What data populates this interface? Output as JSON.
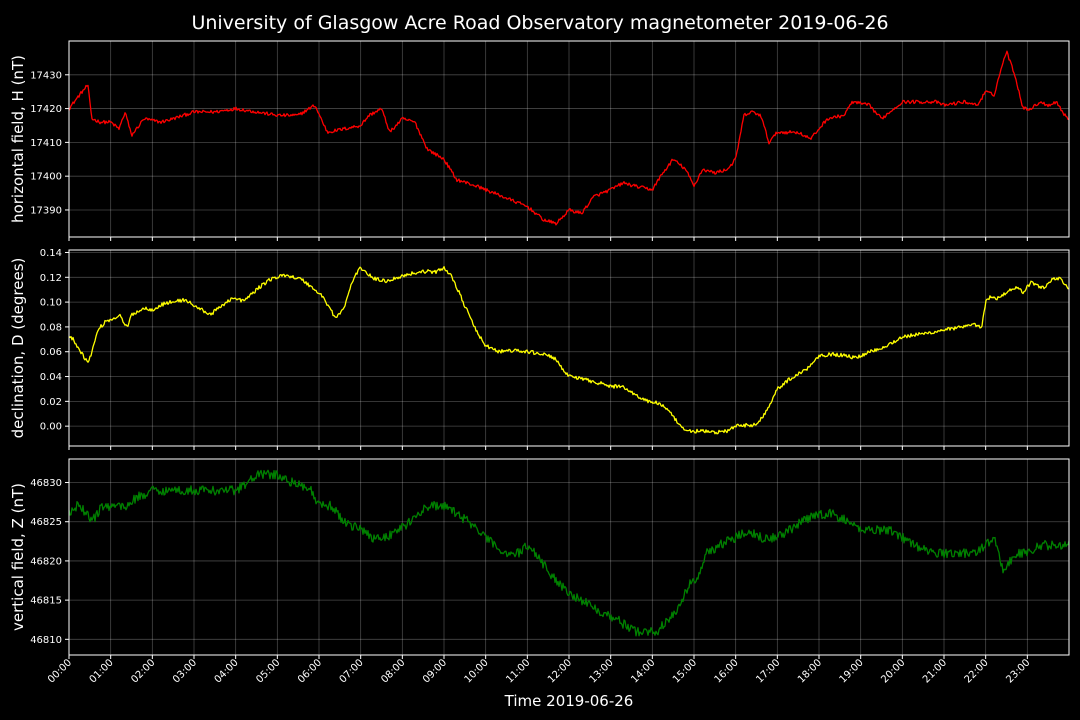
{
  "chart_data": {
    "type": "line",
    "title": "University of Glasgow Acre Road Observatory magnetometer 2019-06-26",
    "xlabel": "Time 2019-06-26",
    "x_ticks": [
      "00:00",
      "01:00",
      "02:00",
      "03:00",
      "04:00",
      "05:00",
      "06:00",
      "07:00",
      "08:00",
      "09:00",
      "10:00",
      "11:00",
      "12:00",
      "13:00",
      "14:00",
      "15:00",
      "16:00",
      "17:00",
      "18:00",
      "19:00",
      "20:00",
      "21:00",
      "22:00",
      "23:00"
    ],
    "xlim": [
      0,
      24
    ],
    "grid": true,
    "panels": [
      {
        "ylabel": "horizontal field, H (nT)",
        "color": "#ff0000",
        "ylim": [
          17382,
          17440
        ],
        "yticks": [
          17390,
          17400,
          17410,
          17420,
          17430
        ],
        "decimals": 0,
        "noise": 0.5,
        "series": {
          "x": [
            0,
            0.25,
            0.45,
            0.55,
            0.75,
            1.0,
            1.2,
            1.35,
            1.5,
            1.8,
            2.2,
            2.5,
            3.0,
            3.5,
            4.0,
            4.5,
            5.0,
            5.5,
            5.9,
            6.2,
            6.6,
            7.0,
            7.2,
            7.5,
            7.7,
            8.0,
            8.3,
            8.6,
            9.0,
            9.3,
            9.8,
            10.2,
            10.6,
            11.0,
            11.4,
            11.7,
            12.0,
            12.3,
            12.6,
            13.0,
            13.3,
            13.6,
            14.0,
            14.2,
            14.5,
            14.8,
            15.0,
            15.2,
            15.5,
            15.8,
            16.0,
            16.2,
            16.4,
            16.6,
            16.8,
            17.0,
            17.5,
            17.8,
            18.2,
            18.6,
            18.8,
            19.2,
            19.5,
            19.8,
            20.0,
            20.5,
            20.8,
            21.0,
            21.5,
            21.8,
            22.0,
            22.2,
            22.4,
            22.5,
            22.7,
            22.9,
            23.1,
            23.3,
            23.5,
            23.7,
            23.9,
            24.0
          ],
          "y": [
            17420,
            17424,
            17427,
            17417,
            17416,
            17416,
            17414,
            17419,
            17412,
            17417,
            17416,
            17417,
            17419,
            17419,
            17420,
            17419,
            17418,
            17418,
            17421,
            17413,
            17414,
            17415,
            17418,
            17420,
            17413,
            17417,
            17416,
            17408,
            17405,
            17399,
            17397,
            17395,
            17393,
            17391,
            17387,
            17386,
            17390,
            17389,
            17394,
            17396,
            17398,
            17397,
            17396,
            17400,
            17405,
            17402,
            17397,
            17402,
            17401,
            17402,
            17405,
            17418,
            17419,
            17418,
            17410,
            17413,
            17413,
            17411,
            17417,
            17418,
            17422,
            17421,
            17417,
            17420,
            17422,
            17422,
            17422,
            17421,
            17422,
            17421,
            17425,
            17424,
            17433,
            17437,
            17430,
            17420,
            17420,
            17422,
            17421,
            17422,
            17418,
            17417
          ]
        }
      },
      {
        "ylabel": "declination, D (degrees)",
        "color": "#ffff00",
        "ylim": [
          -0.016,
          0.142
        ],
        "yticks": [
          0.0,
          0.02,
          0.04,
          0.06,
          0.08,
          0.1,
          0.12,
          0.14
        ],
        "decimals": 2,
        "noise": 0.0015,
        "series": {
          "x": [
            0,
            0.1,
            0.25,
            0.45,
            0.55,
            0.7,
            0.9,
            1.1,
            1.2,
            1.4,
            1.5,
            1.8,
            2.0,
            2.3,
            2.8,
            3.0,
            3.4,
            3.7,
            3.9,
            4.2,
            4.5,
            4.8,
            5.2,
            5.6,
            5.9,
            6.1,
            6.4,
            6.6,
            6.8,
            7.0,
            7.3,
            7.6,
            7.9,
            8.2,
            8.6,
            8.8,
            9.0,
            9.2,
            9.5,
            9.8,
            10.0,
            10.3,
            10.6,
            11.0,
            11.4,
            11.7,
            11.9,
            12.3,
            12.6,
            13.0,
            13.3,
            13.6,
            13.9,
            14.2,
            14.5,
            14.7,
            14.9,
            15.2,
            15.5,
            15.8,
            16.0,
            16.3,
            16.5,
            16.7,
            17.0,
            17.3,
            17.7,
            18.0,
            18.3,
            18.6,
            18.9,
            19.2,
            19.5,
            19.8,
            20.0,
            20.4,
            20.8,
            21.0,
            21.3,
            21.5,
            21.8,
            21.9,
            22.0,
            22.1,
            22.3,
            22.5,
            22.7,
            22.9,
            23.1,
            23.4,
            23.6,
            23.8,
            24.0
          ],
          "y": [
            0.072,
            0.07,
            0.062,
            0.051,
            0.06,
            0.078,
            0.085,
            0.087,
            0.09,
            0.079,
            0.09,
            0.095,
            0.094,
            0.099,
            0.102,
            0.097,
            0.09,
            0.098,
            0.103,
            0.101,
            0.11,
            0.118,
            0.122,
            0.118,
            0.11,
            0.104,
            0.087,
            0.095,
            0.117,
            0.128,
            0.119,
            0.117,
            0.12,
            0.123,
            0.125,
            0.124,
            0.128,
            0.12,
            0.097,
            0.075,
            0.065,
            0.06,
            0.061,
            0.06,
            0.058,
            0.054,
            0.042,
            0.038,
            0.036,
            0.032,
            0.032,
            0.025,
            0.02,
            0.018,
            0.008,
            -0.002,
            -0.004,
            -0.004,
            -0.005,
            -0.004,
            0.0,
            0.001,
            0.001,
            0.01,
            0.03,
            0.038,
            0.046,
            0.057,
            0.058,
            0.057,
            0.055,
            0.06,
            0.063,
            0.068,
            0.072,
            0.074,
            0.076,
            0.078,
            0.079,
            0.08,
            0.082,
            0.078,
            0.1,
            0.104,
            0.103,
            0.108,
            0.112,
            0.108,
            0.116,
            0.111,
            0.119,
            0.119,
            0.11
          ]
        }
      },
      {
        "ylabel": "vertical field, Z (nT)",
        "color": "#008000",
        "ylim": [
          46808,
          46833
        ],
        "yticks": [
          46810,
          46815,
          46820,
          46825,
          46830
        ],
        "decimals": 0,
        "noise": 0.6,
        "series": {
          "x": [
            0,
            0.2,
            0.45,
            0.55,
            0.8,
            1.2,
            1.4,
            1.6,
            2.0,
            2.5,
            3.0,
            3.5,
            4.0,
            4.3,
            4.5,
            4.7,
            5.0,
            5.3,
            5.5,
            5.8,
            6.0,
            6.3,
            6.6,
            7.0,
            7.3,
            7.6,
            7.9,
            8.2,
            8.6,
            9.0,
            9.3,
            9.6,
            10.0,
            10.2,
            10.5,
            10.8,
            11.0,
            11.2,
            11.6,
            12.0,
            12.3,
            12.6,
            13.0,
            13.3,
            13.6,
            13.9,
            14.1,
            14.3,
            14.5,
            14.7,
            14.9,
            15.1,
            15.3,
            15.6,
            16.0,
            16.3,
            16.6,
            17.0,
            17.3,
            17.6,
            18.0,
            18.3,
            18.7,
            19.0,
            19.3,
            19.7,
            20.0,
            20.3,
            20.7,
            21.0,
            21.3,
            21.7,
            22.0,
            22.2,
            22.4,
            22.6,
            22.8,
            23.0,
            23.3,
            23.6,
            24.0
          ],
          "y": [
            46826,
            46827,
            46826,
            46825,
            46827,
            46827,
            46827,
            46828,
            46829,
            46829,
            46829,
            46829,
            46829,
            46830,
            46831,
            46831,
            46831,
            46830,
            46830,
            46829,
            46827,
            46827,
            46825,
            46824,
            46823,
            46823,
            46824,
            46825,
            46827,
            46827,
            46826,
            46825,
            46823,
            46822,
            46821,
            46821,
            46822,
            46821,
            46818,
            46816,
            46815,
            46814,
            46813,
            46812,
            46811,
            46811,
            46811,
            46812,
            46813,
            46815,
            46817,
            46818,
            46821,
            46822,
            46823,
            46824,
            46823,
            46823,
            46824,
            46825,
            46826,
            46826,
            46825,
            46824,
            46824,
            46824,
            46823,
            46822,
            46821,
            46821,
            46821,
            46821,
            46822,
            46823,
            46819,
            46820,
            46821,
            46821,
            46822,
            46822,
            46822
          ]
        }
      }
    ]
  }
}
